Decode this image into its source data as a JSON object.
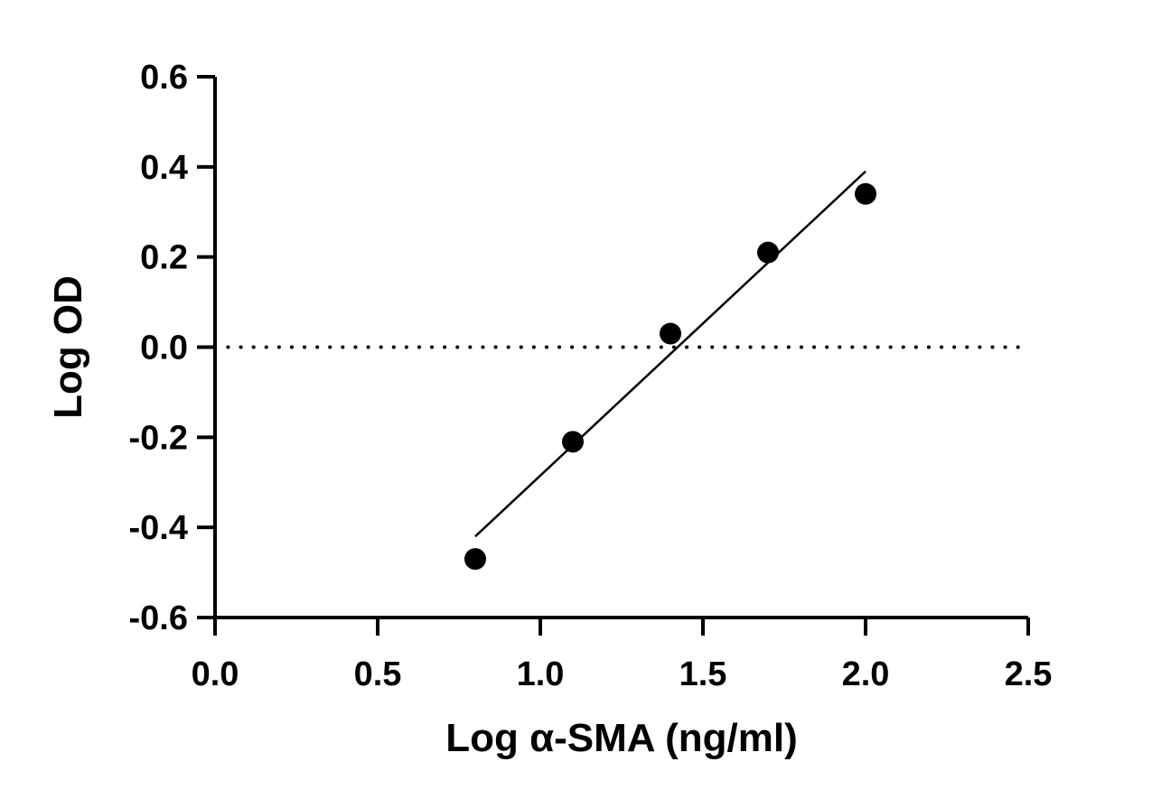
{
  "chart_data": {
    "type": "scatter",
    "title": "",
    "xlabel": "Log α-SMA (ng/ml)",
    "ylabel": "Log OD",
    "xlim": [
      0,
      2.5
    ],
    "ylim": [
      -0.6,
      0.6
    ],
    "xticks": [
      "0.0",
      "0.5",
      "1.0",
      "1.5",
      "2.0",
      "2.5"
    ],
    "yticks": [
      "-0.6",
      "-0.4",
      "-0.2",
      "0.0",
      "0.2",
      "0.4",
      "0.6"
    ],
    "grid": false,
    "legend": "none",
    "points": [
      {
        "x": 0.8,
        "y": -0.47
      },
      {
        "x": 1.1,
        "y": -0.21
      },
      {
        "x": 1.4,
        "y": 0.03
      },
      {
        "x": 1.7,
        "y": 0.21
      },
      {
        "x": 2.0,
        "y": 0.34
      }
    ],
    "fit_line": {
      "x": [
        0.8,
        2.0
      ],
      "y": [
        -0.42,
        0.39
      ]
    },
    "reference_line": {
      "y": 0.0,
      "style": "dotted",
      "x": [
        0.04,
        2.47
      ]
    },
    "colors": {
      "marker": "#000000",
      "line": "#000000",
      "axis": "#000000"
    }
  }
}
